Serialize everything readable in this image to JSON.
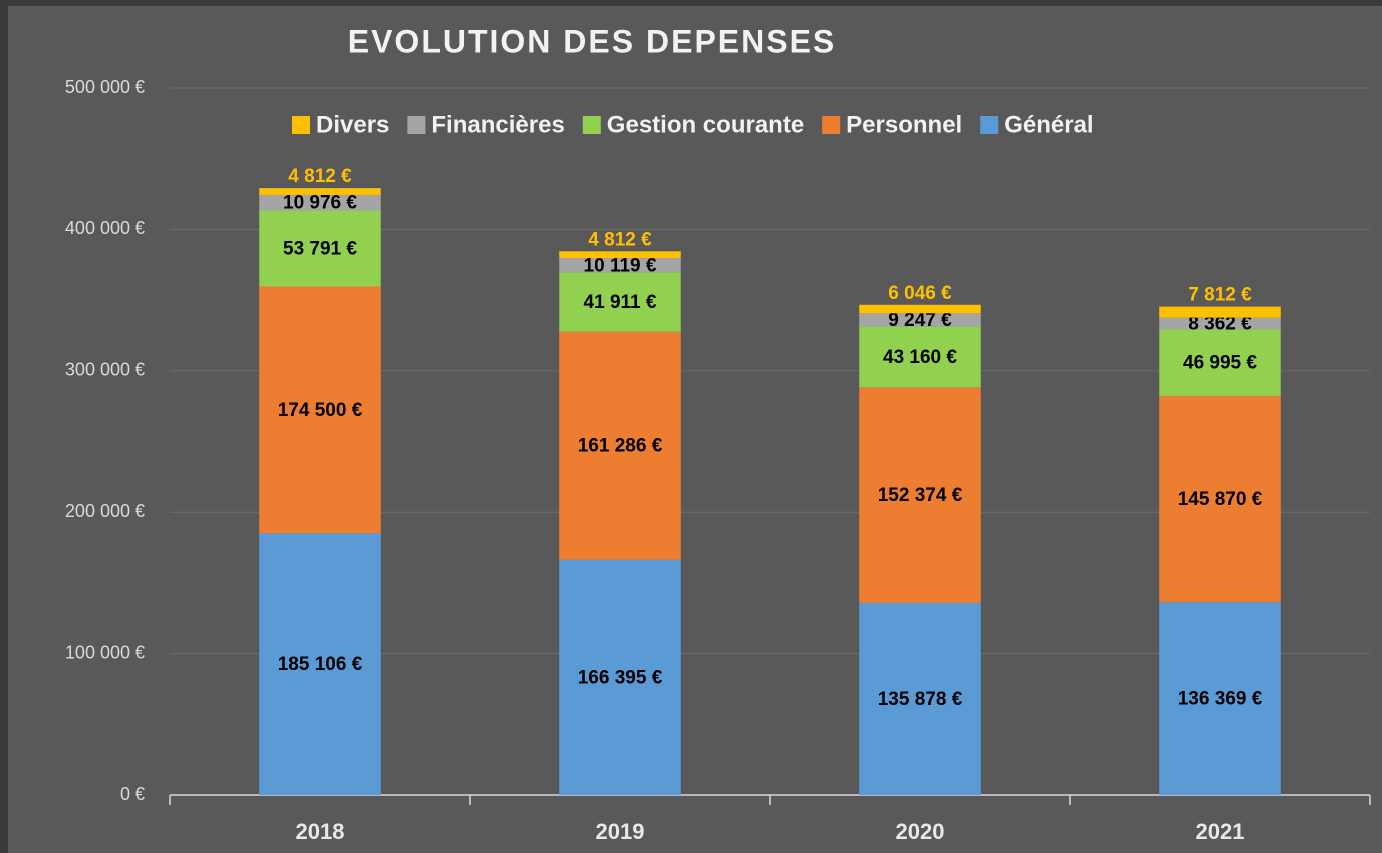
{
  "chart_data": {
    "type": "stacked-bar",
    "title": "EVOLUTION DES DEPENSES",
    "categories": [
      "2018",
      "2019",
      "2020",
      "2021"
    ],
    "series": [
      {
        "name": "Général",
        "color": "#5b9bd5",
        "values": [
          185106,
          166395,
          135878,
          136369
        ],
        "value_labels": [
          "185 106 €",
          "166 395 €",
          "135 878 €",
          "136 369 €"
        ]
      },
      {
        "name": "Personnel",
        "color": "#ed7d31",
        "values": [
          174500,
          161286,
          152374,
          145870
        ],
        "value_labels": [
          "174 500 €",
          "161 286 €",
          "152 374 €",
          "145 870 €"
        ]
      },
      {
        "name": "Gestion courante",
        "color": "#92d050",
        "values": [
          53791,
          41911,
          43160,
          46995
        ],
        "value_labels": [
          "53 791 €",
          "41 911 €",
          "43 160 €",
          "46 995 €"
        ]
      },
      {
        "name": "Financières",
        "color": "#a5a5a5",
        "values": [
          10976,
          10119,
          9247,
          8362
        ],
        "value_labels": [
          "10 976 €",
          "10 119 €",
          "9 247 €",
          "8 362 €"
        ]
      },
      {
        "name": "Divers",
        "color": "#ffc000",
        "values": [
          4812,
          4812,
          6046,
          7812
        ],
        "value_labels": [
          "4 812 €",
          "4 812 €",
          "6 046 €",
          "7 812 €"
        ]
      }
    ],
    "ylim": [
      0,
      500000
    ],
    "yticks": [
      {
        "value": 0,
        "label": "0 €"
      },
      {
        "value": 100000,
        "label": "100 000 €"
      },
      {
        "value": 200000,
        "label": "200 000 €"
      },
      {
        "value": 300000,
        "label": "300 000 €"
      },
      {
        "value": 400000,
        "label": "400 000 €"
      },
      {
        "value": 500000,
        "label": "500 000 €"
      }
    ],
    "grid": true,
    "legend": "top"
  }
}
